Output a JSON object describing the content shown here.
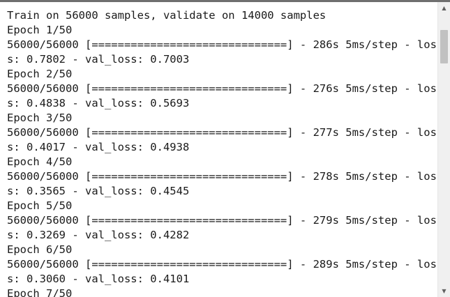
{
  "console": {
    "lines": [
      "Train on 56000 samples, validate on 14000 samples",
      "Epoch 1/50",
      "56000/56000 [==============================] - 286s 5ms/step - los",
      "s: 0.7802 - val_loss: 0.7003",
      "Epoch 2/50",
      "56000/56000 [==============================] - 276s 5ms/step - los",
      "s: 0.4838 - val_loss: 0.5693",
      "Epoch 3/50",
      "56000/56000 [==============================] - 277s 5ms/step - los",
      "s: 0.4017 - val_loss: 0.4938",
      "Epoch 4/50",
      "56000/56000 [==============================] - 278s 5ms/step - los",
      "s: 0.3565 - val_loss: 0.4545",
      "Epoch 5/50",
      "56000/56000 [==============================] - 279s 5ms/step - los",
      "s: 0.3269 - val_loss: 0.4282",
      "Epoch 6/50",
      "56000/56000 [==============================] - 289s 5ms/step - los",
      "s: 0.3060 - val_loss: 0.4101",
      "Epoch 7/50"
    ]
  },
  "scrollbar": {
    "up_icon": "▲",
    "down_icon": "▼",
    "icons": [
      "scroll-up-arrow-icon",
      "scroll-down-arrow-icon"
    ]
  }
}
